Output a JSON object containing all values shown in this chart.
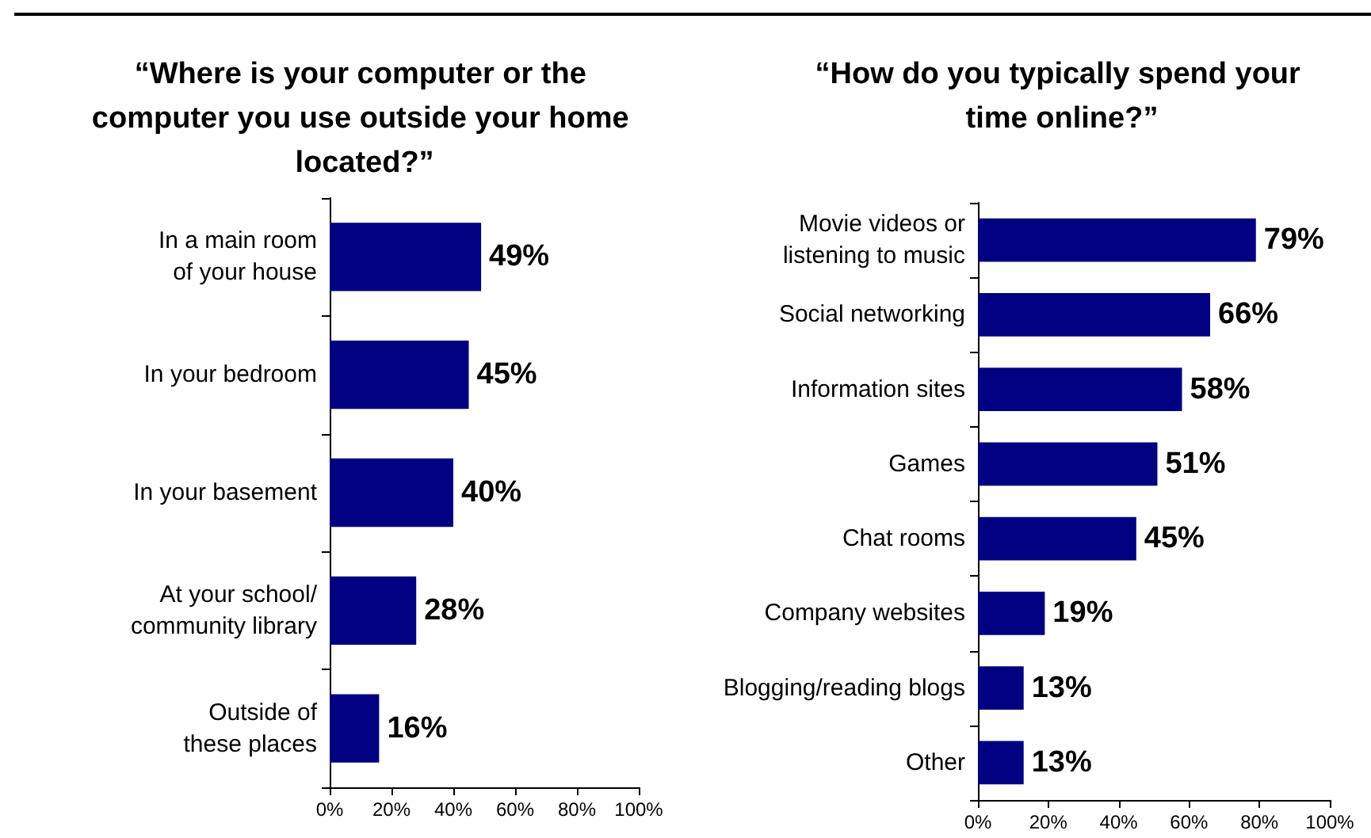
{
  "chart_data": [
    {
      "type": "bar",
      "orientation": "horizontal",
      "title": "“Where is your computer or the computer you use outside your home located?”",
      "categories": [
        "In a main room\nof your house",
        "In your bedroom",
        "In your basement",
        "At your school/\ncommunity library",
        "Outside of\nthese places"
      ],
      "values": [
        49,
        45,
        40,
        28,
        16
      ],
      "color": "#000080",
      "value_labels": [
        "49%",
        "45%",
        "40%",
        "28%",
        "16%"
      ],
      "xlim": [
        0,
        100
      ],
      "xticks": [
        {
          "value": 0,
          "label": "0%"
        },
        {
          "value": 20,
          "label": "20%"
        },
        {
          "value": 40,
          "label": "40%"
        },
        {
          "value": 60,
          "label": "60%"
        },
        {
          "value": 80,
          "label": "80%"
        },
        {
          "value": 100,
          "label": "100%"
        }
      ],
      "grid": false
    },
    {
      "type": "bar",
      "orientation": "horizontal",
      "title": "“How do you typically spend your time online?”",
      "categories": [
        "Movie videos or\nlistening to music",
        "Social networking",
        "Information sites",
        "Games",
        "Chat rooms",
        "Company websites",
        "Blogging/reading blogs",
        "Other"
      ],
      "values": [
        79,
        66,
        58,
        51,
        45,
        19,
        13,
        13
      ],
      "color": "#000080",
      "value_labels": [
        "79%",
        "66%",
        "58%",
        "51%",
        "45%",
        "19%",
        "13%",
        "13%"
      ],
      "xlim": [
        0,
        100
      ],
      "xticks": [
        {
          "value": 0,
          "label": "0%"
        },
        {
          "value": 20,
          "label": "20%"
        },
        {
          "value": 40,
          "label": "40%"
        },
        {
          "value": 60,
          "label": "60%"
        },
        {
          "value": 80,
          "label": "80%"
        },
        {
          "value": 100,
          "label": "100%"
        }
      ],
      "grid": false
    }
  ]
}
